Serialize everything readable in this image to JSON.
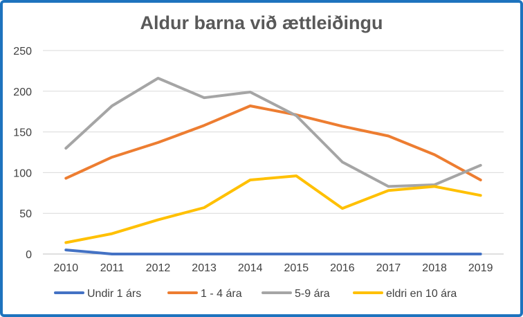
{
  "chart_data": {
    "type": "line",
    "title": "Aldur barna við ættleiðingu",
    "xlabel": "",
    "ylabel": "",
    "categories": [
      "2010",
      "2011",
      "2012",
      "2013",
      "2014",
      "2015",
      "2016",
      "2017",
      "2018",
      "2019"
    ],
    "ylim": [
      0,
      250
    ],
    "yticks": [
      0,
      50,
      100,
      150,
      200,
      250
    ],
    "grid": true,
    "legend_position": "bottom",
    "series": [
      {
        "name": "Undir 1 árs",
        "color": "#4472c4",
        "values": [
          5,
          0,
          0,
          0,
          0,
          0,
          0,
          0,
          0,
          0
        ]
      },
      {
        "name": "1 - 4 ára",
        "color": "#ed7d31",
        "values": [
          93,
          119,
          137,
          158,
          182,
          171,
          157,
          145,
          122,
          91
        ]
      },
      {
        "name": "5-9 ára",
        "color": "#a5a5a5",
        "values": [
          130,
          182,
          216,
          192,
          199,
          170,
          113,
          83,
          85,
          109
        ]
      },
      {
        "name": "eldri en 10 ára",
        "color": "#ffc000",
        "values": [
          14,
          25,
          42,
          57,
          91,
          96,
          56,
          78,
          83,
          72
        ]
      }
    ]
  }
}
